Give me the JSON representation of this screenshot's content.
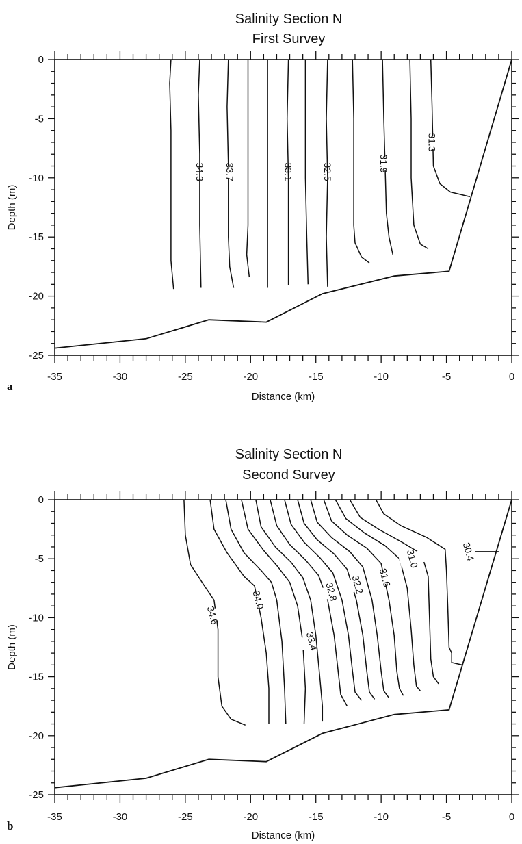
{
  "chart_data": [
    {
      "type": "contour",
      "panel_label": "a",
      "title": [
        "Salinity Section N",
        "First Survey"
      ],
      "xlabel": "Distance (km)",
      "ylabel": "Depth (m)",
      "xlim": [
        -35,
        0
      ],
      "ylim": [
        -25,
        0
      ],
      "xticks": [
        -35,
        -30,
        -25,
        -20,
        -15,
        -10,
        -5,
        0
      ],
      "yticks": [
        0,
        -5,
        -10,
        -15,
        -20,
        -25
      ],
      "bottom_profile": [
        [
          -35,
          -24.4
        ],
        [
          -28,
          -23.6
        ],
        [
          -23.2,
          -22
        ],
        [
          -18.8,
          -22.2
        ],
        [
          -14.5,
          -19.8
        ],
        [
          -9,
          -18.3
        ],
        [
          -4.8,
          -17.9
        ],
        [
          0,
          0
        ]
      ],
      "contours": [
        {
          "label": "34.3",
          "label_at": [
            -23.9,
            -9.5
          ],
          "points": [
            [
              -26.1,
              0
            ],
            [
              -26.2,
              -2
            ],
            [
              -26.1,
              -6
            ],
            [
              -26.1,
              -12
            ],
            [
              -26.1,
              -17
            ],
            [
              -25.9,
              -19.4
            ]
          ]
        },
        {
          "label": "",
          "points": [
            [
              -23.9,
              0
            ],
            [
              -24.0,
              -3
            ],
            [
              -23.9,
              -8
            ],
            [
              -23.9,
              -14
            ],
            [
              -23.8,
              -19.3
            ]
          ]
        },
        {
          "label": "33.7",
          "label_at": [
            -21.6,
            -9.5
          ],
          "points": [
            [
              -21.7,
              0
            ],
            [
              -21.8,
              -4
            ],
            [
              -21.7,
              -9
            ],
            [
              -21.7,
              -15
            ],
            [
              -21.6,
              -17.5
            ],
            [
              -21.3,
              -19.3
            ]
          ]
        },
        {
          "label": "",
          "points": [
            [
              -20.2,
              0
            ],
            [
              -20.2,
              -4
            ],
            [
              -20.2,
              -9
            ],
            [
              -20.2,
              -14
            ],
            [
              -20.3,
              -16.5
            ],
            [
              -20.1,
              -18.4
            ]
          ]
        },
        {
          "label": "33.1",
          "label_at": [
            -17.1,
            -9.5
          ],
          "points": [
            [
              -18.7,
              0
            ],
            [
              -18.7,
              -5
            ],
            [
              -18.7,
              -10
            ],
            [
              -18.7,
              -15
            ],
            [
              -18.7,
              -19.3
            ]
          ]
        },
        {
          "label": "",
          "points": [
            [
              -17.1,
              0
            ],
            [
              -17.2,
              -5
            ],
            [
              -17.1,
              -10
            ],
            [
              -17.1,
              -15
            ],
            [
              -17.1,
              -19.1
            ]
          ]
        },
        {
          "label": "32.5",
          "label_at": [
            -14.1,
            -9.5
          ],
          "points": [
            [
              -15.8,
              0
            ],
            [
              -15.8,
              -5
            ],
            [
              -15.8,
              -10
            ],
            [
              -15.7,
              -15
            ],
            [
              -15.6,
              -19
            ]
          ]
        },
        {
          "label": "",
          "points": [
            [
              -14.1,
              0
            ],
            [
              -14.2,
              -5
            ],
            [
              -14.1,
              -10
            ],
            [
              -14.2,
              -15
            ],
            [
              -14.1,
              -19.2
            ]
          ]
        },
        {
          "label": "",
          "points": [
            [
              -12.2,
              0
            ],
            [
              -12.1,
              -5
            ],
            [
              -12.1,
              -10
            ],
            [
              -12.1,
              -14
            ],
            [
              -12.0,
              -15.5
            ],
            [
              -11.5,
              -16.7
            ],
            [
              -10.9,
              -17.2
            ]
          ]
        },
        {
          "label": "31.9",
          "label_at": [
            -9.8,
            -8.8
          ],
          "points": [
            [
              -9.9,
              0
            ],
            [
              -9.8,
              -5
            ],
            [
              -9.7,
              -9
            ],
            [
              -9.6,
              -13
            ],
            [
              -9.4,
              -15
            ],
            [
              -9.1,
              -16.5
            ]
          ]
        },
        {
          "label": "",
          "points": [
            [
              -7.8,
              0
            ],
            [
              -7.7,
              -5
            ],
            [
              -7.7,
              -10
            ],
            [
              -7.5,
              -14
            ],
            [
              -7.0,
              -15.6
            ],
            [
              -6.4,
              -16.0
            ]
          ]
        },
        {
          "label": "31.3",
          "label_at": [
            -6.1,
            -7.0
          ],
          "points": [
            [
              -6.2,
              0
            ],
            [
              -6.1,
              -4
            ],
            [
              -6.0,
              -9
            ],
            [
              -5.5,
              -10.5
            ],
            [
              -4.7,
              -11.2
            ],
            [
              -3.2,
              -11.6
            ]
          ]
        }
      ]
    },
    {
      "type": "contour",
      "panel_label": "b",
      "title": [
        "Salinity Section N",
        "Second Survey"
      ],
      "xlabel": "Distance (km)",
      "ylabel": "Depth (m)",
      "xlim": [
        -35,
        0
      ],
      "ylim": [
        -25,
        0
      ],
      "xticks": [
        -35,
        -30,
        -25,
        -20,
        -15,
        -10,
        -5,
        0
      ],
      "yticks": [
        0,
        -5,
        -10,
        -15,
        -20,
        -25
      ],
      "bottom_profile": [
        [
          -35,
          -24.4
        ],
        [
          -28,
          -23.6
        ],
        [
          -23.2,
          -22
        ],
        [
          -18.8,
          -22.2
        ],
        [
          -14.5,
          -19.8
        ],
        [
          -9,
          -18.2
        ],
        [
          -4.8,
          -17.8
        ],
        [
          0,
          0
        ]
      ],
      "contours": [
        {
          "label": "34.6",
          "label_at": [
            -22.9,
            -9.8
          ],
          "points": [
            [
              -25.1,
              0
            ],
            [
              -25.0,
              -3
            ],
            [
              -24.6,
              -5.5
            ],
            [
              -23.6,
              -7.2
            ],
            [
              -22.8,
              -8.5
            ],
            [
              -22.5,
              -11
            ],
            [
              -22.5,
              -15
            ],
            [
              -22.2,
              -17.5
            ],
            [
              -21.5,
              -18.6
            ],
            [
              -20.4,
              -19.1
            ]
          ]
        },
        {
          "label": "34.0",
          "label_at": [
            -19.4,
            -8.5
          ],
          "points": [
            [
              -23.1,
              0
            ],
            [
              -22.8,
              -2.5
            ],
            [
              -21.8,
              -4.5
            ],
            [
              -20.5,
              -6.5
            ],
            [
              -19.7,
              -7.3
            ],
            [
              -19.2,
              -10
            ],
            [
              -18.8,
              -13
            ],
            [
              -18.6,
              -16
            ],
            [
              -18.6,
              -19
            ]
          ]
        },
        {
          "label": "",
          "points": [
            [
              -21.9,
              0
            ],
            [
              -21.5,
              -2.5
            ],
            [
              -20.5,
              -4.5
            ],
            [
              -19.2,
              -6.0
            ],
            [
              -18.4,
              -7.0
            ],
            [
              -18.0,
              -8.5
            ],
            [
              -17.6,
              -12
            ],
            [
              -17.4,
              -16
            ],
            [
              -17.3,
              -19
            ]
          ]
        },
        {
          "label": "33.4",
          "label_at": [
            -15.3,
            -12.0
          ],
          "points": [
            [
              -20.7,
              0
            ],
            [
              -20.2,
              -2.5
            ],
            [
              -19.0,
              -4.3
            ],
            [
              -17.9,
              -5.7
            ],
            [
              -17.0,
              -7.0
            ],
            [
              -16.4,
              -9.0
            ],
            [
              -16.0,
              -12
            ],
            [
              -15.8,
              -16
            ],
            [
              -15.9,
              -19
            ]
          ]
        },
        {
          "label": "",
          "points": [
            [
              -19.6,
              0
            ],
            [
              -19.2,
              -2.3
            ],
            [
              -18.1,
              -4.0
            ],
            [
              -16.9,
              -5.3
            ],
            [
              -16.0,
              -6.6
            ],
            [
              -15.4,
              -8.5
            ],
            [
              -15.0,
              -11.5
            ],
            [
              -14.7,
              -15
            ],
            [
              -14.5,
              -17.5
            ],
            [
              -14.5,
              -18.8
            ]
          ]
        },
        {
          "label": "32.8",
          "label_at": [
            -13.8,
            -7.8
          ],
          "points": [
            [
              -18.5,
              0
            ],
            [
              -18.0,
              -2.2
            ],
            [
              -17.0,
              -3.8
            ],
            [
              -15.8,
              -5.1
            ],
            [
              -14.8,
              -6.4
            ],
            [
              -14.1,
              -8.5
            ],
            [
              -13.6,
              -11.5
            ],
            [
              -13.3,
              -14.5
            ],
            [
              -13.1,
              -16.5
            ],
            [
              -12.6,
              -17.5
            ]
          ]
        },
        {
          "label": "",
          "points": [
            [
              -17.4,
              0
            ],
            [
              -16.9,
              -2.1
            ],
            [
              -15.9,
              -3.6
            ],
            [
              -14.7,
              -4.9
            ],
            [
              -13.7,
              -6.2
            ],
            [
              -13.0,
              -8.5
            ],
            [
              -12.5,
              -11.5
            ],
            [
              -12.2,
              -14.5
            ],
            [
              -12.0,
              -16.3
            ],
            [
              -11.5,
              -17.0
            ]
          ]
        },
        {
          "label": "32.2",
          "label_at": [
            -11.8,
            -7.2
          ],
          "points": [
            [
              -16.4,
              0
            ],
            [
              -15.9,
              -2.0
            ],
            [
              -14.9,
              -3.4
            ],
            [
              -13.6,
              -4.6
            ],
            [
              -12.6,
              -5.9
            ],
            [
              -11.9,
              -8.5
            ],
            [
              -11.4,
              -11.5
            ],
            [
              -11.1,
              -14.5
            ],
            [
              -10.9,
              -16.3
            ],
            [
              -10.5,
              -16.9
            ]
          ]
        },
        {
          "label": "",
          "points": [
            [
              -15.4,
              0
            ],
            [
              -14.9,
              -1.9
            ],
            [
              -13.8,
              -3.2
            ],
            [
              -12.4,
              -4.4
            ],
            [
              -11.4,
              -5.7
            ],
            [
              -10.7,
              -8.5
            ],
            [
              -10.3,
              -11.5
            ],
            [
              -10.0,
              -14.5
            ],
            [
              -9.8,
              -16.2
            ],
            [
              -9.4,
              -16.8
            ]
          ]
        },
        {
          "label": "31.6",
          "label_at": [
            -9.7,
            -6.6
          ],
          "points": [
            [
              -14.4,
              0
            ],
            [
              -13.8,
              -1.8
            ],
            [
              -12.6,
              -3.0
            ],
            [
              -11.1,
              -4.1
            ],
            [
              -10.0,
              -5.4
            ],
            [
              -9.4,
              -8.5
            ],
            [
              -9.0,
              -11.5
            ],
            [
              -8.8,
              -14.5
            ],
            [
              -8.6,
              -16.0
            ],
            [
              -8.3,
              -16.6
            ]
          ]
        },
        {
          "label": "",
          "points": [
            [
              -13.5,
              0
            ],
            [
              -12.7,
              -1.6
            ],
            [
              -11.3,
              -2.8
            ],
            [
              -9.7,
              -3.9
            ],
            [
              -8.6,
              -5.0
            ],
            [
              -8.0,
              -7.5
            ],
            [
              -7.7,
              -11
            ],
            [
              -7.5,
              -14.0
            ],
            [
              -7.3,
              -15.8
            ],
            [
              -7.0,
              -16.2
            ]
          ]
        },
        {
          "label": "31.0",
          "label_at": [
            -7.6,
            -5.0
          ],
          "points": [
            [
              -12.4,
              0
            ],
            [
              -11.6,
              -1.5
            ],
            [
              -10.2,
              -2.5
            ],
            [
              -8.4,
              -3.6
            ],
            [
              -6.9,
              -4.6
            ],
            [
              -6.4,
              -6.5
            ],
            [
              -6.3,
              -10
            ],
            [
              -6.2,
              -13.5
            ],
            [
              -6.0,
              -15.0
            ],
            [
              -5.6,
              -15.6
            ]
          ]
        },
        {
          "label": "30.4",
          "label_at": [
            -3.3,
            -4.4
          ],
          "points": [
            [
              -10.4,
              0
            ],
            [
              -9.8,
              -1.2
            ],
            [
              -8.5,
              -2.2
            ],
            [
              -6.5,
              -3.2
            ],
            [
              -5.1,
              -4.2
            ],
            [
              -5.0,
              -6.0
            ],
            [
              -4.9,
              -9
            ],
            [
              -4.8,
              -12.5
            ],
            [
              -4.6,
              -13.0
            ],
            [
              -4.6,
              -13.8
            ],
            [
              -3.8,
              -14.0
            ]
          ]
        },
        {
          "label": "",
          "points": [
            [
              -2.8,
              -4.4
            ],
            [
              -1.5,
              -4.4
            ],
            [
              -1.0,
              -4.4
            ]
          ]
        }
      ]
    }
  ]
}
